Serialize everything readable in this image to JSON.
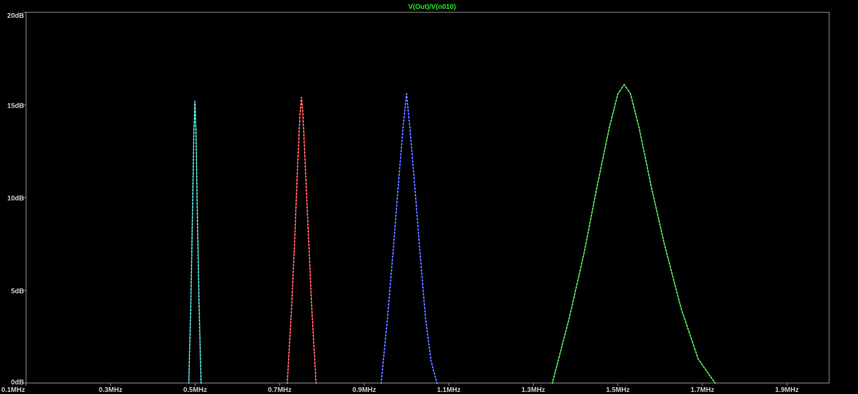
{
  "chart_data": {
    "type": "line",
    "title": "V(Out)/V(n010)",
    "xlabel": "",
    "ylabel": "",
    "xlim": [
      0.1,
      2.0
    ],
    "ylim": [
      0,
      20
    ],
    "x_ticks": [
      {
        "value": 0.1,
        "label": "0.1MHz"
      },
      {
        "value": 0.3,
        "label": "0.3MHz"
      },
      {
        "value": 0.5,
        "label": "0.5MHz"
      },
      {
        "value": 0.7,
        "label": "0.7MHz"
      },
      {
        "value": 0.9,
        "label": "0.9MHz"
      },
      {
        "value": 1.1,
        "label": "1.1MHz"
      },
      {
        "value": 1.3,
        "label": "1.3MHz"
      },
      {
        "value": 1.5,
        "label": "1.5MHz"
      },
      {
        "value": 1.7,
        "label": "1.7MHz"
      },
      {
        "value": 1.9,
        "label": "1.9MHz"
      }
    ],
    "y_ticks": [
      {
        "value": 0,
        "label": "0dB"
      },
      {
        "value": 5,
        "label": "5dB"
      },
      {
        "value": 10,
        "label": "10dB"
      },
      {
        "value": 15,
        "label": "15dB"
      },
      {
        "value": 20,
        "label": "20dB"
      }
    ],
    "grid": false,
    "colors": {
      "background": "#000000",
      "axis": "#9a9a9a",
      "tick_text": "#cfcfcf",
      "title": "#22ee22"
    },
    "series": [
      {
        "color": "#22cccc",
        "x": [
          0.485,
          0.49,
          0.494,
          0.497,
          0.4995,
          0.502,
          0.505,
          0.509,
          0.514
        ],
        "y": [
          0,
          4.5,
          9.5,
          13.5,
          15.2,
          13.5,
          9.5,
          4.5,
          0
        ]
      },
      {
        "color": "#ff2020",
        "x": [
          0.718,
          0.728,
          0.736,
          0.742,
          0.748,
          0.7515,
          0.755,
          0.761,
          0.768,
          0.776,
          0.786
        ],
        "y": [
          0,
          4.0,
          8.0,
          11.5,
          14.5,
          15.4,
          14.5,
          11.5,
          8.0,
          4.0,
          0
        ]
      },
      {
        "color": "#2030ff",
        "x": [
          0.94,
          0.955,
          0.968,
          0.98,
          0.992,
          1.0,
          1.008,
          1.02,
          1.032,
          1.045,
          1.058,
          1.072
        ],
        "y": [
          0,
          3.5,
          7.0,
          10.5,
          13.8,
          15.6,
          13.8,
          10.5,
          7.0,
          3.5,
          1.2,
          0
        ]
      },
      {
        "color": "#22dd22",
        "x": [
          1.345,
          1.385,
          1.42,
          1.45,
          1.48,
          1.5,
          1.515,
          1.53,
          1.55,
          1.58,
          1.61,
          1.65,
          1.69,
          1.73
        ],
        "y": [
          0,
          3.5,
          7.0,
          10.5,
          13.8,
          15.6,
          16.1,
          15.6,
          13.8,
          10.5,
          7.5,
          4.0,
          1.3,
          0
        ]
      }
    ]
  }
}
